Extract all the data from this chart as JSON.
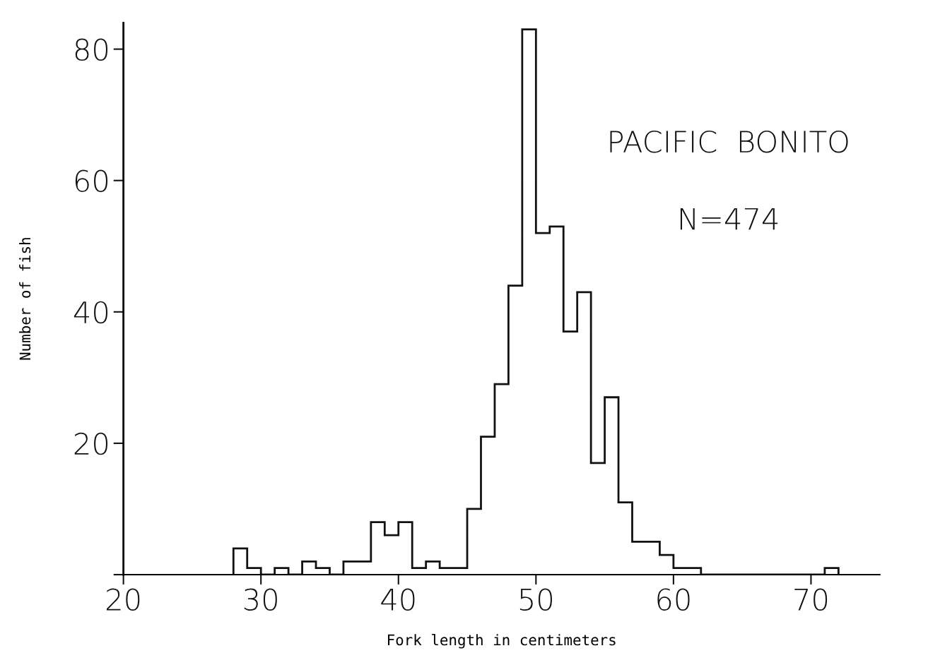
{
  "chart_data": {
    "type": "histogram",
    "xlabel": "Fork length in centimeters",
    "ylabel": "Number of fish",
    "annotations": [
      "PACIFIC  BONITO",
      "N=474"
    ],
    "bins": [
      28,
      29,
      30,
      31,
      32,
      33,
      34,
      35,
      36,
      37,
      38,
      39,
      40,
      41,
      42,
      43,
      44,
      45,
      46,
      47,
      48,
      49,
      50,
      51,
      52,
      53,
      54,
      55,
      56,
      57,
      58,
      59,
      60,
      61,
      62,
      63,
      64,
      65,
      66,
      67,
      68,
      69,
      70,
      71,
      72
    ],
    "values": [
      4,
      1,
      0,
      1,
      0,
      2,
      1,
      0,
      2,
      2,
      8,
      6,
      8,
      1,
      2,
      1,
      1,
      10,
      21,
      29,
      44,
      83,
      52,
      53,
      37,
      43,
      17,
      27,
      11,
      5,
      5,
      3,
      1,
      1,
      0,
      0,
      0,
      0,
      0,
      0,
      0,
      0,
      0,
      1
    ],
    "color": "#111111",
    "xlim": [
      20,
      75
    ],
    "xticks": [
      20,
      30,
      40,
      50,
      60,
      70
    ],
    "ylim": [
      0,
      84
    ],
    "yticks": [
      {
        "value": 0,
        "label": null
      },
      20,
      40,
      60,
      80
    ],
    "grid": false
  }
}
